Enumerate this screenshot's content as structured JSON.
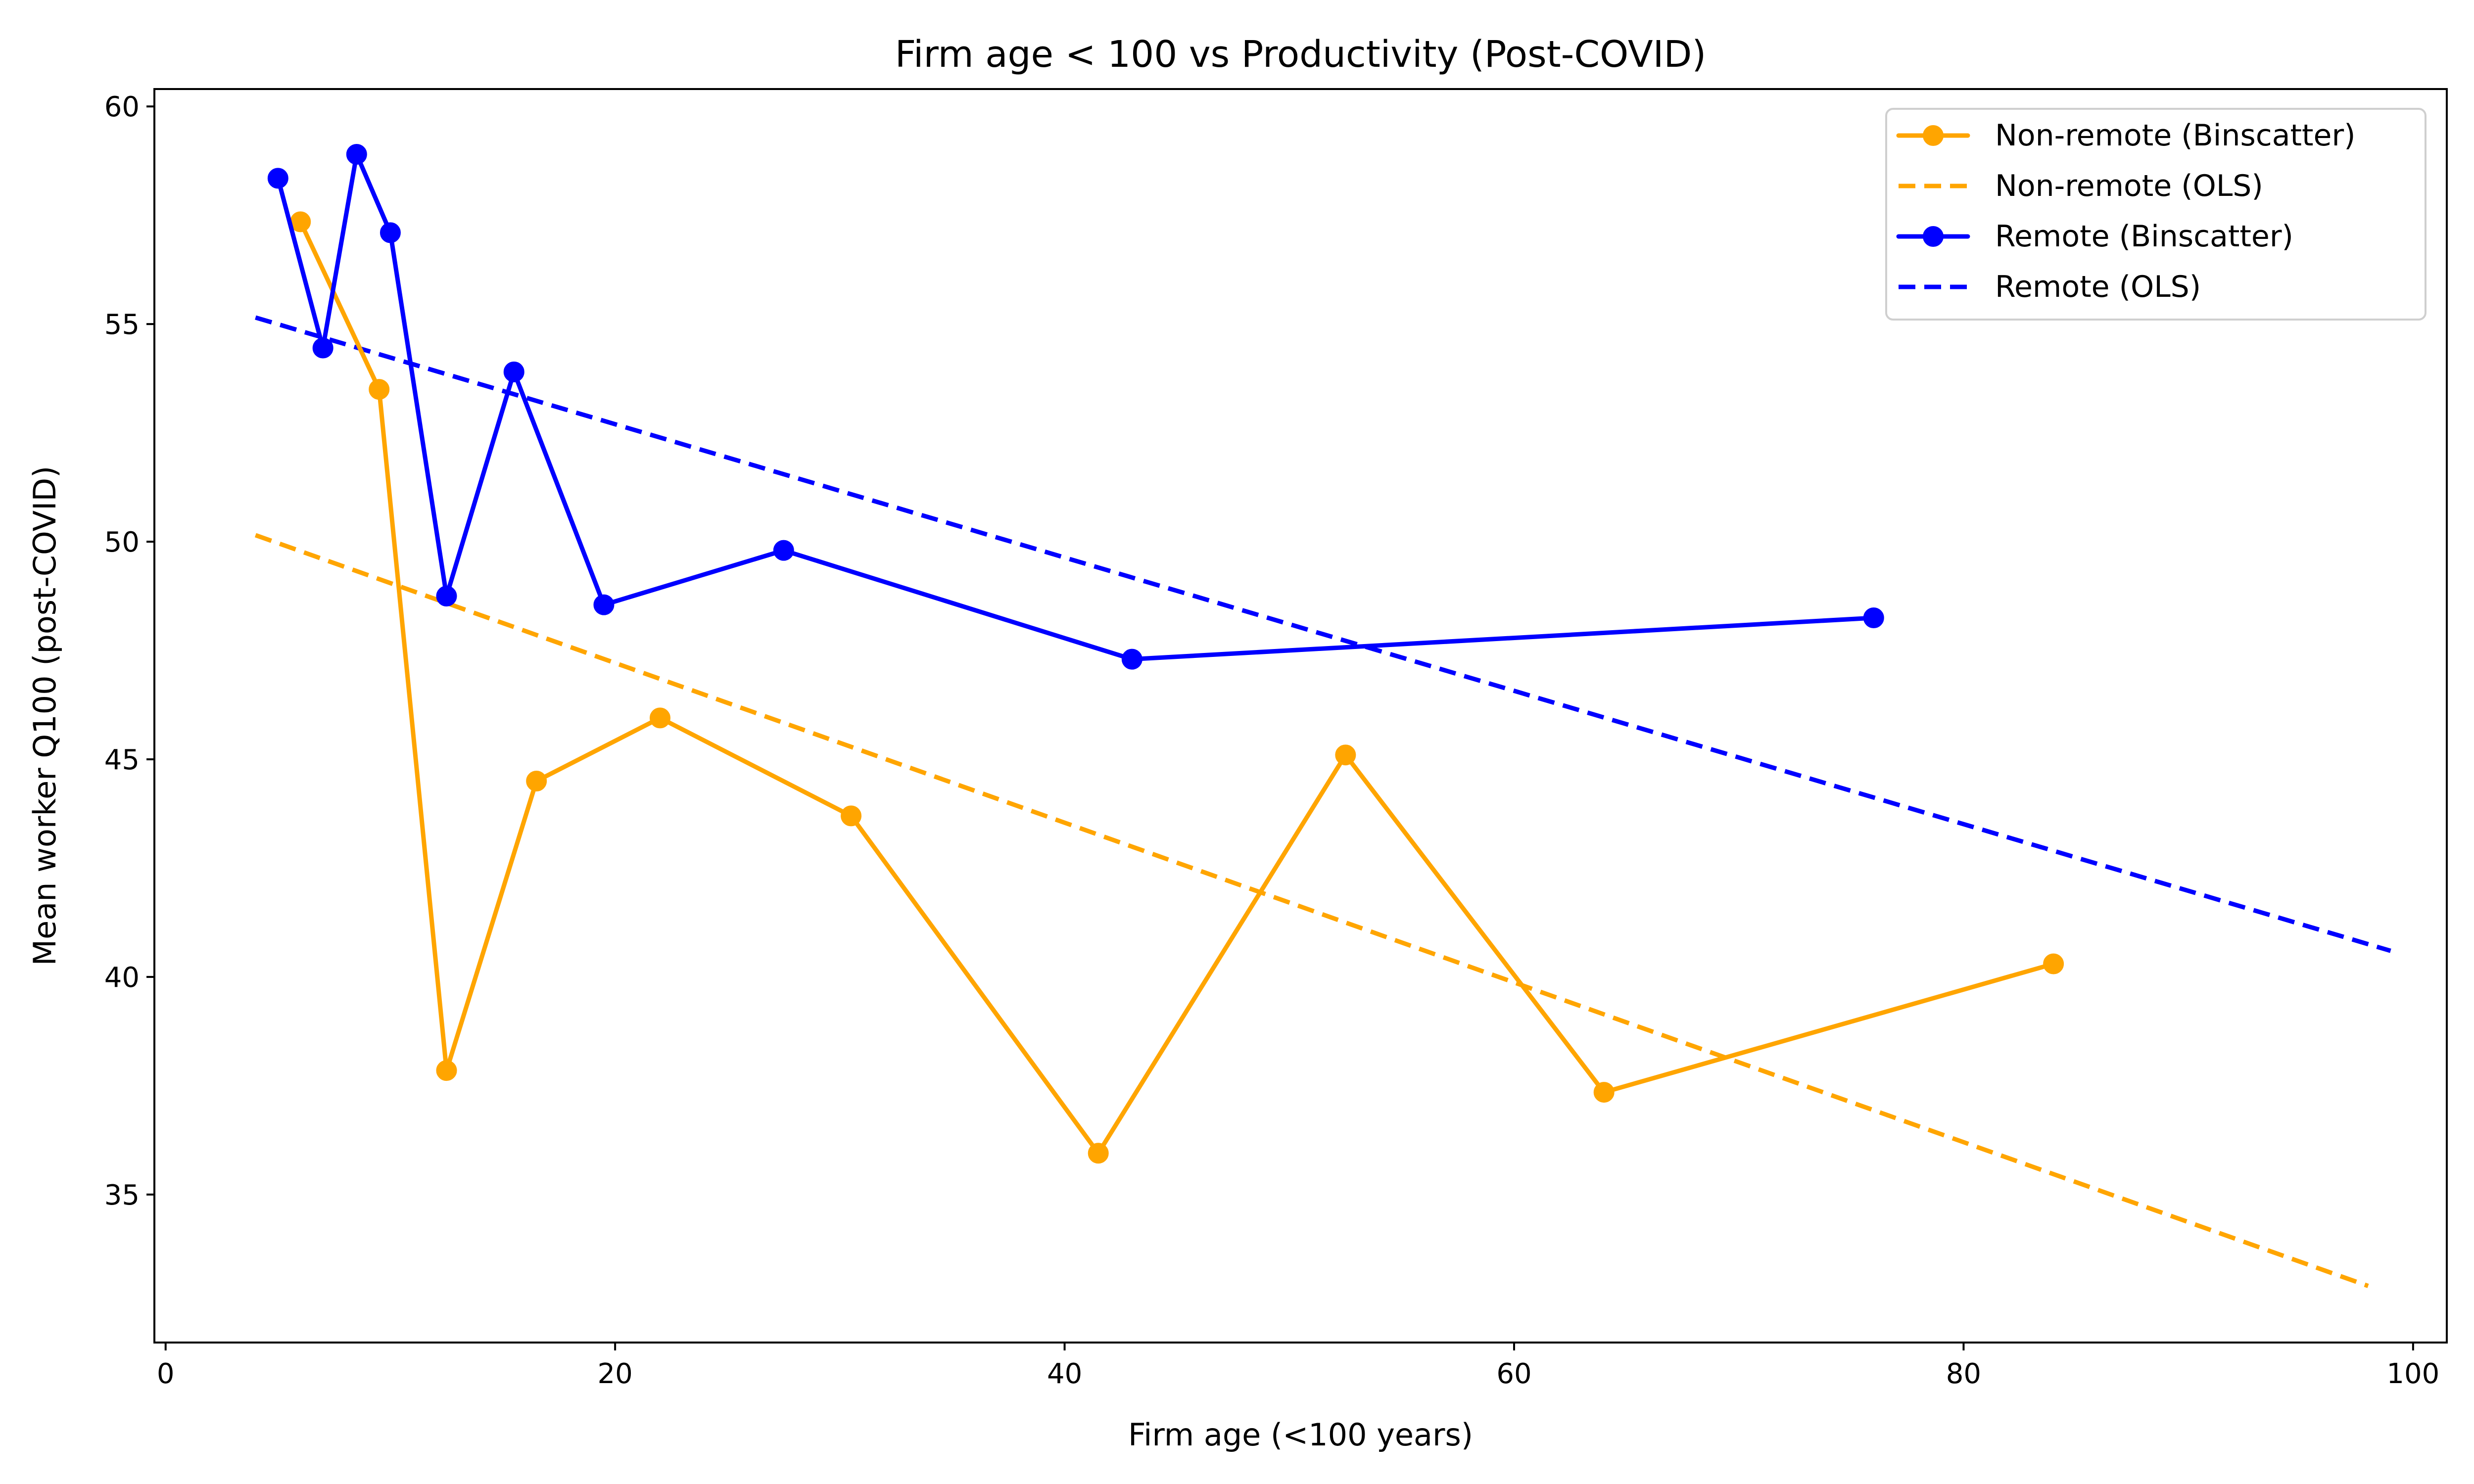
{
  "chart_data": {
    "type": "line",
    "title": "Firm age < 100 vs Productivity (Post-COVID)",
    "xlabel": "Firm age (<100 years)",
    "ylabel": "Mean worker Q100 (post-COVID)",
    "xlim": [
      -0.5,
      101.5
    ],
    "ylim": [
      31.6,
      60.4
    ],
    "xticks": [
      0,
      20,
      40,
      60,
      80,
      100
    ],
    "yticks": [
      35,
      40,
      45,
      50,
      55,
      60
    ],
    "grid": false,
    "legend_position": "top-right",
    "series": [
      {
        "name": "Non-remote (Binscatter)",
        "kind": "binscatter",
        "color": "#FFA500",
        "line_style": "solid",
        "marker": "circle",
        "points": [
          {
            "x": 6.0,
            "y": 57.35
          },
          {
            "x": 9.5,
            "y": 53.5
          },
          {
            "x": 12.5,
            "y": 37.85
          },
          {
            "x": 16.5,
            "y": 44.5
          },
          {
            "x": 22.0,
            "y": 45.95
          },
          {
            "x": 30.5,
            "y": 43.7
          },
          {
            "x": 41.5,
            "y": 35.95
          },
          {
            "x": 52.5,
            "y": 45.1
          },
          {
            "x": 64.0,
            "y": 37.35
          },
          {
            "x": 84.0,
            "y": 40.3
          }
        ]
      },
      {
        "name": "Non-remote (OLS)",
        "kind": "ols",
        "color": "#FFA500",
        "line_style": "dashed",
        "marker": "none",
        "points": [
          {
            "x": 4.0,
            "y": 50.15
          },
          {
            "x": 98.0,
            "y": 32.9
          }
        ]
      },
      {
        "name": "Remote (Binscatter)",
        "kind": "binscatter",
        "color": "#0000FF",
        "line_style": "solid",
        "marker": "circle",
        "points": [
          {
            "x": 5.0,
            "y": 58.35
          },
          {
            "x": 7.0,
            "y": 54.45
          },
          {
            "x": 8.5,
            "y": 58.9
          },
          {
            "x": 10.0,
            "y": 57.1
          },
          {
            "x": 12.5,
            "y": 48.75
          },
          {
            "x": 15.5,
            "y": 53.9
          },
          {
            "x": 19.5,
            "y": 48.55
          },
          {
            "x": 27.5,
            "y": 49.8
          },
          {
            "x": 43.0,
            "y": 47.3
          },
          {
            "x": 76.0,
            "y": 48.25
          }
        ]
      },
      {
        "name": "Remote (OLS)",
        "kind": "ols",
        "color": "#0000FF",
        "line_style": "dashed",
        "marker": "none",
        "points": [
          {
            "x": 4.0,
            "y": 55.15
          },
          {
            "x": 99.0,
            "y": 40.6
          }
        ]
      }
    ]
  }
}
